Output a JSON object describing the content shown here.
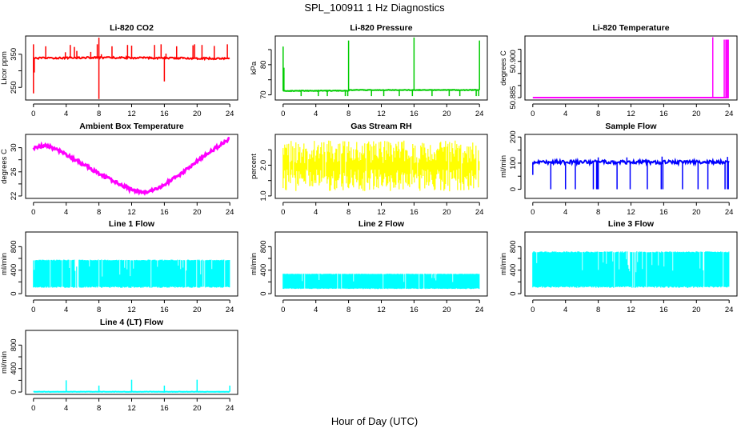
{
  "title": "SPL_100911  1 Hz Diagnostics",
  "xlabel": "Hour of Day (UTC)",
  "chart_data": [
    {
      "type": "line",
      "kind": "spiky",
      "title": "Li-820 CO2",
      "ylabel": "Licor ppm",
      "color": "#ff0000",
      "xlim": [
        0,
        24
      ],
      "xticks": [
        0,
        4,
        8,
        12,
        16,
        20,
        24
      ],
      "ylim": [
        212,
        405
      ],
      "yticks": [
        250,
        300,
        350
      ],
      "ytick_labels": [
        "250",
        "",
        "350"
      ],
      "baseline": [
        [
          0,
          338
        ],
        [
          8,
          340
        ],
        [
          24,
          337
        ]
      ],
      "noise": 2.5,
      "spikes": [
        [
          0,
          380
        ],
        [
          0,
          232
        ],
        [
          0.1,
          295
        ],
        [
          1.5,
          374
        ],
        [
          3.9,
          356
        ],
        [
          4.5,
          378
        ],
        [
          5,
          372
        ],
        [
          5.3,
          360
        ],
        [
          7,
          357
        ],
        [
          7.8,
          380
        ],
        [
          8,
          400
        ],
        [
          8,
          215
        ],
        [
          8.3,
          350
        ],
        [
          9.6,
          374
        ],
        [
          11.5,
          378
        ],
        [
          12,
          376
        ],
        [
          14.8,
          378
        ],
        [
          15.6,
          380
        ],
        [
          16,
          268
        ],
        [
          16.2,
          352
        ],
        [
          17.5,
          374
        ],
        [
          19.5,
          377
        ],
        [
          19.7,
          380
        ],
        [
          20.6,
          378
        ],
        [
          22.1,
          375
        ],
        [
          23.7,
          380
        ]
      ]
    },
    {
      "type": "line",
      "kind": "spiky",
      "title": "Li-820 Pressure",
      "ylabel": "kPa",
      "color": "#00cc00",
      "xlim": [
        0,
        24
      ],
      "xticks": [
        0,
        4,
        8,
        12,
        16,
        20,
        24
      ],
      "ylim": [
        68.3,
        89.5
      ],
      "yticks": [
        70,
        75,
        80,
        85
      ],
      "ytick_labels": [
        "70",
        "",
        "80",
        ""
      ],
      "baseline": [
        [
          0,
          71.3
        ],
        [
          8,
          71.4
        ],
        [
          8.05,
          71.6
        ],
        [
          24,
          71.6
        ]
      ],
      "noise": 0.1,
      "spikes": [
        [
          0,
          86
        ],
        [
          0.1,
          79
        ],
        [
          8,
          88
        ],
        [
          16,
          89
        ],
        [
          24,
          88
        ],
        [
          2.2,
          69.6
        ],
        [
          4.3,
          69.6
        ],
        [
          5.4,
          69.6
        ],
        [
          7.6,
          69.6
        ],
        [
          7.9,
          69.6
        ],
        [
          10.8,
          69.6
        ],
        [
          12.3,
          69.6
        ],
        [
          14.2,
          69.6
        ],
        [
          15.8,
          69.6
        ],
        [
          18.2,
          69.6
        ],
        [
          20.3,
          69.6
        ],
        [
          21.6,
          69.6
        ],
        [
          23.6,
          69.6
        ],
        [
          23.9,
          69.6
        ]
      ]
    },
    {
      "type": "line",
      "kind": "spiky",
      "title": "Li-820 Temperature",
      "ylabel": "degrees C",
      "color": "#ff00ff",
      "xlim": [
        0,
        24
      ],
      "xticks": [
        0,
        4,
        8,
        12,
        16,
        20,
        24
      ],
      "ylim": [
        50.884,
        50.9105
      ],
      "yticks": [
        50.885,
        50.89,
        50.895,
        50.9,
        50.905
      ],
      "ytick_labels": [
        "50.885",
        "",
        "",
        "50.900",
        ""
      ],
      "baseline": [
        [
          0,
          50.885
        ],
        [
          24,
          50.885
        ]
      ],
      "noise": 0,
      "spikes": [
        [
          22,
          50.91
        ],
        [
          23.4,
          50.909
        ],
        [
          23.6,
          50.909
        ],
        [
          23.65,
          50.909
        ],
        [
          23.7,
          50.909
        ],
        [
          23.75,
          50.909
        ],
        [
          23.8,
          50.909
        ],
        [
          23.85,
          50.909
        ],
        [
          23.9,
          50.909
        ]
      ]
    },
    {
      "type": "line",
      "kind": "curve",
      "title": "Ambient Box Temperature",
      "ylabel": "degrees C",
      "color": "#ff00ff",
      "xlim": [
        0,
        24
      ],
      "xticks": [
        0,
        4,
        8,
        12,
        16,
        20,
        24
      ],
      "ylim": [
        21.6,
        32.2
      ],
      "yticks": [
        22,
        24,
        26,
        28,
        30
      ],
      "ytick_labels": [
        "22",
        "",
        "26",
        "",
        "30"
      ],
      "points": [
        [
          0,
          29.9
        ],
        [
          1.5,
          30.4
        ],
        [
          3,
          29.6
        ],
        [
          6,
          27.3
        ],
        [
          9,
          25
        ],
        [
          12,
          23
        ],
        [
          13.5,
          22.6
        ],
        [
          15,
          23.1
        ],
        [
          18,
          25.6
        ],
        [
          21,
          28.8
        ],
        [
          24,
          31.5
        ]
      ],
      "noise": 0.25
    },
    {
      "type": "line",
      "kind": "band",
      "title": "Gas Stream RH",
      "ylabel": "percent",
      "color": "#ffff00",
      "xlim": [
        0,
        24
      ],
      "xticks": [
        0,
        4,
        8,
        12,
        16,
        20,
        24
      ],
      "ylim": [
        0.92,
        3.0
      ],
      "yticks": [
        1.0,
        1.5,
        2.0,
        2.5
      ],
      "ytick_labels": [
        "1.0",
        "",
        "2.0",
        ""
      ],
      "band": [
        1.15,
        2.8
      ],
      "center": 2.0
    },
    {
      "type": "line",
      "kind": "spiky",
      "title": "Sample Flow",
      "ylabel": "ml/min",
      "color": "#0000ff",
      "xlim": [
        0,
        24
      ],
      "xticks": [
        0,
        4,
        8,
        12,
        16,
        20,
        24
      ],
      "ylim": [
        -35,
        210
      ],
      "yticks": [
        0,
        50,
        100,
        150,
        200
      ],
      "ytick_labels": [
        "0",
        "",
        "100",
        "",
        "200"
      ],
      "baseline": [
        [
          0,
          104
        ],
        [
          24,
          104
        ]
      ],
      "noise": 7,
      "spikes": [
        [
          0,
          55
        ],
        [
          2.2,
          0
        ],
        [
          4,
          0
        ],
        [
          5.2,
          0
        ],
        [
          7.4,
          0
        ],
        [
          7.8,
          0
        ],
        [
          7.9,
          0
        ],
        [
          8,
          0
        ],
        [
          10.3,
          0
        ],
        [
          11.9,
          0
        ],
        [
          14,
          0
        ],
        [
          15.7,
          0
        ],
        [
          15.9,
          0
        ],
        [
          18.3,
          0
        ],
        [
          20.2,
          0
        ],
        [
          21.4,
          0
        ],
        [
          23.5,
          0
        ],
        [
          23.8,
          0
        ],
        [
          23.9,
          0
        ],
        [
          15.8,
          125
        ],
        [
          23.8,
          124
        ],
        [
          8,
          122
        ],
        [
          11.5,
          122
        ]
      ]
    },
    {
      "type": "line",
      "kind": "band",
      "title": "Line 1 Flow",
      "ylabel": "ml/min",
      "color": "#00ffff",
      "xlim": [
        0,
        24
      ],
      "xticks": [
        0,
        4,
        8,
        12,
        16,
        20,
        24
      ],
      "ylim": [
        -40,
        1050
      ],
      "yticks": [
        0,
        200,
        400,
        600,
        800
      ],
      "ytick_labels": [
        "0",
        "",
        "400",
        "",
        "800"
      ],
      "band": [
        100,
        580
      ],
      "end": 24
    },
    {
      "type": "line",
      "kind": "band",
      "title": "Line 2 Flow",
      "ylabel": "ml/min",
      "color": "#00ffff",
      "xlim": [
        0,
        24
      ],
      "xticks": [
        0,
        4,
        8,
        12,
        16,
        20,
        24
      ],
      "ylim": [
        -40,
        1050
      ],
      "yticks": [
        0,
        200,
        400,
        600,
        800
      ],
      "ytick_labels": [
        "0",
        "",
        "400",
        "",
        "800"
      ],
      "band": [
        80,
        340
      ],
      "end": 24
    },
    {
      "type": "line",
      "kind": "band",
      "title": "Line 3 Flow",
      "ylabel": "ml/min",
      "color": "#00ffff",
      "xlim": [
        0,
        24
      ],
      "xticks": [
        0,
        4,
        8,
        12,
        16,
        20,
        24
      ],
      "ylim": [
        -40,
        1050
      ],
      "yticks": [
        0,
        200,
        400,
        600,
        800
      ],
      "ytick_labels": [
        "0",
        "",
        "400",
        "",
        "800"
      ],
      "band": [
        100,
        720
      ],
      "end": 24
    },
    {
      "type": "line",
      "kind": "spiky",
      "title": "Line 4 (LT) Flow",
      "ylabel": "ml/min",
      "color": "#00ffff",
      "xlim": [
        0,
        24
      ],
      "xticks": [
        0,
        4,
        8,
        12,
        16,
        20,
        24
      ],
      "ylim": [
        -40,
        1050
      ],
      "yticks": [
        0,
        200,
        400,
        600,
        800
      ],
      "ytick_labels": [
        "0",
        "",
        "400",
        "",
        "800"
      ],
      "baseline": [
        [
          0,
          5
        ],
        [
          24,
          5
        ]
      ],
      "noise": 3,
      "spikes": [
        [
          4,
          200
        ],
        [
          8,
          110
        ],
        [
          12,
          210
        ],
        [
          16,
          110
        ],
        [
          20,
          210
        ],
        [
          24,
          110
        ]
      ]
    }
  ]
}
